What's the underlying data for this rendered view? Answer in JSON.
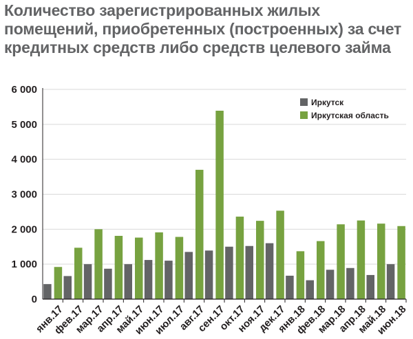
{
  "chart_data": {
    "type": "bar",
    "title": "Количество зарегистрированных жилых помещений, приобретенных (построенных) за счет кредитных средств либо средств целевого займа",
    "xlabel": "",
    "ylabel": "",
    "ylim": [
      0,
      6000
    ],
    "yticks": [
      0,
      1000,
      2000,
      3000,
      4000,
      5000,
      6000
    ],
    "ytick_labels": [
      "0",
      "1 000",
      "2 000",
      "3 000",
      "4 000",
      "5 000",
      "6 000"
    ],
    "grid": "horizontal",
    "legend_position": "top-right",
    "categories": [
      "янв.17",
      "фев.17",
      "мар.17",
      "апр.17",
      "май.17",
      "июн.17",
      "июл.17",
      "авг.17",
      "сен.17",
      "окт.17",
      "ноя.17",
      "дек.17",
      "янв.18",
      "фев.18",
      "мар.18",
      "апр.18",
      "май.18",
      "июн.18"
    ],
    "series": [
      {
        "name": "Иркутск",
        "color": "#636466",
        "values": [
          430,
          660,
          1000,
          870,
          1000,
          1120,
          1100,
          1350,
          1390,
          1500,
          1520,
          1600,
          670,
          540,
          840,
          890,
          690,
          1000
        ]
      },
      {
        "name": "Иркутская область",
        "color": "#77a240",
        "values": [
          920,
          1470,
          2000,
          1810,
          1760,
          1910,
          1780,
          3700,
          5390,
          2360,
          2240,
          2530,
          1370,
          1660,
          2140,
          2250,
          2160,
          2090
        ]
      }
    ]
  }
}
